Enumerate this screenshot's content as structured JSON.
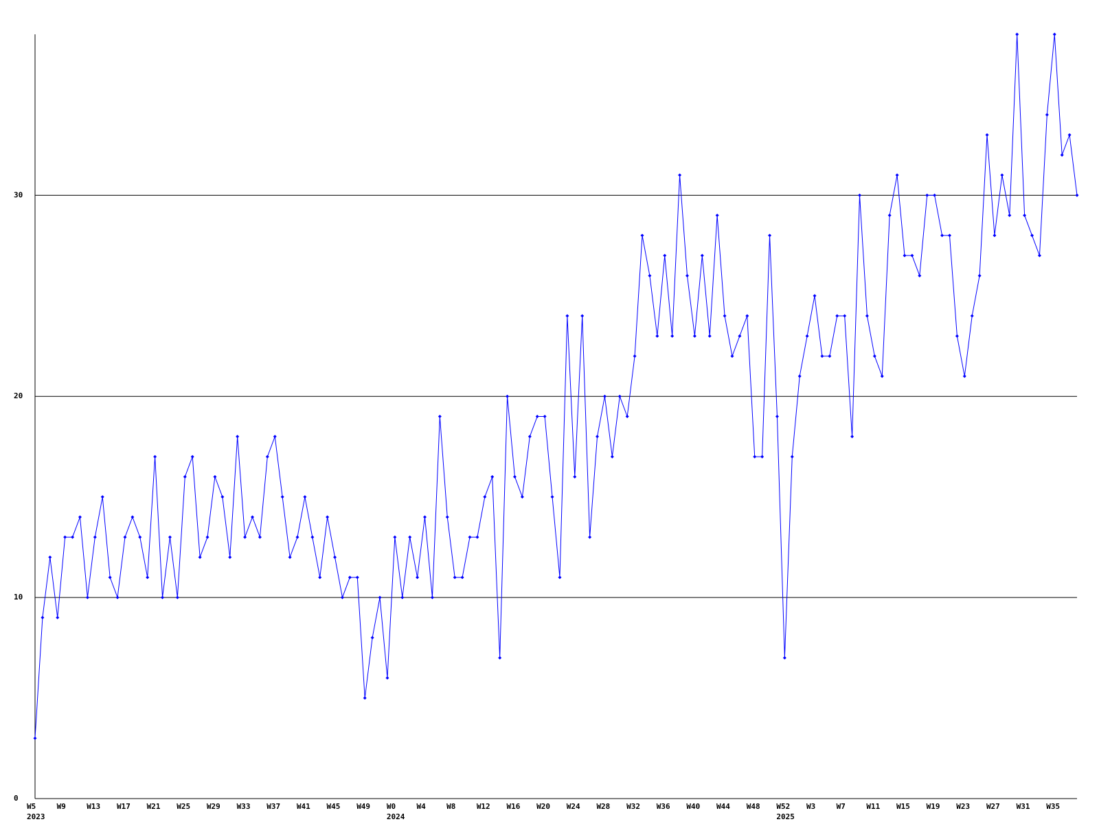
{
  "chart_data": {
    "type": "line",
    "categories": [
      "W5",
      null,
      null,
      null,
      "W9",
      null,
      null,
      null,
      "W13",
      null,
      null,
      null,
      "W17",
      null,
      null,
      null,
      "W21",
      null,
      null,
      null,
      "W25",
      null,
      null,
      null,
      "W29",
      null,
      null,
      null,
      "W33",
      null,
      null,
      null,
      "W37",
      null,
      null,
      null,
      "W41",
      null,
      null,
      null,
      "W45",
      null,
      null,
      null,
      "W49",
      null,
      null,
      null,
      "W0",
      null,
      null,
      null,
      "W4",
      null,
      null,
      null,
      "W8",
      null,
      null,
      null,
      "W12",
      null,
      null,
      null,
      "W16",
      null,
      null,
      null,
      "W20",
      null,
      null,
      null,
      "W24",
      null,
      null,
      null,
      "W28",
      null,
      null,
      null,
      "W32",
      null,
      null,
      null,
      "W36",
      null,
      null,
      null,
      "W40",
      null,
      null,
      null,
      "W44",
      null,
      null,
      null,
      "W48",
      null,
      null,
      null,
      "W52",
      null,
      null,
      null,
      "W3",
      null,
      null,
      null,
      "W7",
      null,
      null,
      null,
      "W11",
      null,
      null,
      null,
      "W15",
      null,
      null,
      null,
      "W19",
      null,
      null,
      null,
      "W23",
      null,
      null,
      null,
      "W27",
      null,
      null,
      null,
      "W31",
      null,
      null,
      null,
      "W35",
      null,
      null,
      null
    ],
    "category_years": [
      "2023",
      null,
      null,
      null,
      null,
      null,
      null,
      null,
      null,
      null,
      null,
      null,
      null,
      null,
      null,
      null,
      null,
      null,
      null,
      null,
      null,
      null,
      null,
      null,
      null,
      null,
      null,
      null,
      null,
      null,
      null,
      null,
      null,
      null,
      null,
      null,
      null,
      null,
      null,
      null,
      null,
      null,
      null,
      null,
      null,
      null,
      null,
      null,
      "2024",
      null,
      null,
      null,
      null,
      null,
      null,
      null,
      null,
      null,
      null,
      null,
      null,
      null,
      null,
      null,
      null,
      null,
      null,
      null,
      null,
      null,
      null,
      null,
      null,
      null,
      null,
      null,
      null,
      null,
      null,
      null,
      null,
      null,
      null,
      null,
      null,
      null,
      null,
      null,
      null,
      null,
      null,
      null,
      null,
      null,
      null,
      null,
      null,
      null,
      null,
      null,
      "2025",
      null,
      null,
      null,
      null,
      null,
      null,
      null,
      null,
      null,
      null,
      null,
      null,
      null,
      null,
      null,
      null,
      null,
      null,
      null,
      null,
      null,
      null,
      null,
      null,
      null,
      null,
      null,
      null,
      null,
      null,
      null,
      null,
      null,
      null,
      null,
      null,
      null,
      null,
      null
    ],
    "values": [
      3,
      9,
      12,
      9,
      13,
      13,
      14,
      10,
      13,
      15,
      11,
      10,
      13,
      14,
      13,
      11,
      17,
      10,
      13,
      10,
      16,
      17,
      12,
      13,
      16,
      15,
      12,
      18,
      13,
      14,
      13,
      17,
      18,
      15,
      12,
      13,
      15,
      13,
      11,
      14,
      12,
      10,
      11,
      11,
      5,
      8,
      10,
      6,
      13,
      10,
      13,
      11,
      14,
      10,
      19,
      14,
      11,
      11,
      13,
      13,
      15,
      16,
      7,
      20,
      16,
      15,
      18,
      19,
      19,
      15,
      11,
      24,
      16,
      24,
      13,
      18,
      20,
      17,
      20,
      19,
      22,
      28,
      26,
      23,
      27,
      23,
      31,
      26,
      23,
      27,
      23,
      29,
      24,
      22,
      23,
      24,
      17,
      17,
      28,
      19,
      7,
      17,
      21,
      23,
      25,
      22,
      22,
      24,
      24,
      18,
      30,
      24,
      22,
      21,
      29,
      31,
      27,
      27,
      26,
      30,
      30,
      28,
      28,
      23,
      21,
      24,
      26,
      33,
      28,
      31,
      29,
      38,
      29,
      28,
      27,
      34,
      38,
      32,
      33,
      30
    ],
    "color": "#0000ff",
    "ylim": [
      0,
      38
    ],
    "yticks": [
      0,
      10,
      20,
      30
    ],
    "grid": true
  }
}
